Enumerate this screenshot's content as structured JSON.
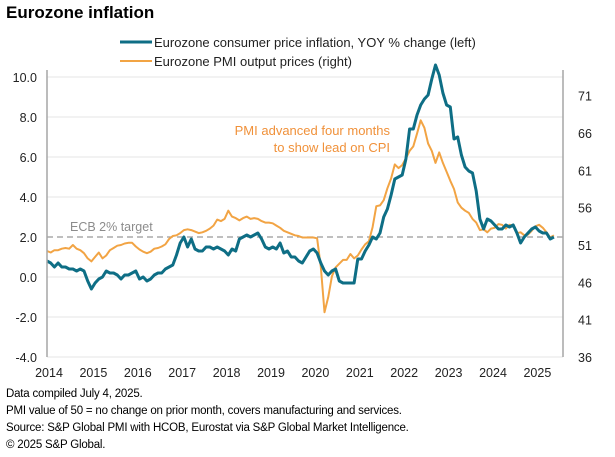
{
  "chart_data": {
    "type": "line",
    "title": "Eurozone inflation",
    "xlabel": "",
    "ylabel_left": "",
    "ylabel_right": "",
    "x_start": "2014-01",
    "x_ticks": [
      "2014",
      "2015",
      "2016",
      "2017",
      "2018",
      "2019",
      "2020",
      "2021",
      "2022",
      "2023",
      "2024",
      "2025"
    ],
    "ylim_left": [
      -4.0,
      10.0
    ],
    "yticks_left": [
      "10.0",
      "8.0",
      "6.0",
      "4.0",
      "2.0",
      "0.0",
      "-2.0",
      "-4.0"
    ],
    "ylim_right": [
      36,
      73.5
    ],
    "yticks_right": [
      "71",
      "66",
      "61",
      "56",
      "51",
      "46",
      "41",
      "36"
    ],
    "grid": true,
    "legend_position": "top-center",
    "reference_line": {
      "label": "ECB 2% target",
      "value": 2.0,
      "axis": "left"
    },
    "annotation": {
      "lines": [
        "PMI advanced four months",
        "to show lead on CPI"
      ]
    },
    "series": [
      {
        "name": "Eurozone consumer price inflation, YOY % change (left)",
        "axis": "left",
        "color": "#0e6e85",
        "values": [
          0.8,
          0.7,
          0.5,
          0.7,
          0.5,
          0.5,
          0.4,
          0.4,
          0.3,
          0.4,
          0.3,
          -0.2,
          -0.6,
          -0.3,
          -0.1,
          0.0,
          0.3,
          0.2,
          0.2,
          0.1,
          -0.1,
          0.1,
          0.1,
          0.2,
          0.3,
          -0.1,
          0.0,
          -0.2,
          -0.1,
          0.1,
          0.2,
          0.2,
          0.4,
          0.5,
          0.6,
          1.1,
          1.7,
          2.0,
          1.5,
          1.9,
          1.4,
          1.3,
          1.3,
          1.5,
          1.5,
          1.4,
          1.5,
          1.4,
          1.3,
          1.1,
          1.4,
          1.3,
          1.9,
          2.0,
          2.1,
          2.0,
          2.1,
          2.2,
          1.9,
          1.5,
          1.4,
          1.5,
          1.4,
          1.7,
          1.2,
          1.3,
          1.0,
          1.0,
          0.8,
          0.7,
          1.0,
          1.3,
          1.4,
          1.2,
          0.7,
          0.3,
          0.1,
          0.3,
          0.4,
          -0.2,
          -0.3,
          -0.3,
          -0.3,
          -0.3,
          0.9,
          0.9,
          1.3,
          1.6,
          2.0,
          1.9,
          2.2,
          3.0,
          3.4,
          4.1,
          4.9,
          5.0,
          5.1,
          5.9,
          7.4,
          7.4,
          8.1,
          8.6,
          8.9,
          9.1,
          9.9,
          10.6,
          10.1,
          9.2,
          8.6,
          8.5,
          6.9,
          7.0,
          6.1,
          5.5,
          5.3,
          5.2,
          4.3,
          2.9,
          2.4,
          2.9,
          2.8,
          2.6,
          2.4,
          2.4,
          2.6,
          2.5,
          2.6,
          2.2,
          1.7,
          2.0,
          2.2,
          2.4,
          2.5,
          2.3,
          2.2,
          2.2,
          1.9,
          2.0
        ]
      },
      {
        "name": "Eurozone PMI output prices (right)",
        "axis": "right",
        "color": "#f2a444",
        "values": [
          50.2,
          50.0,
          50.3,
          50.3,
          50.5,
          50.6,
          50.5,
          51.0,
          50.5,
          50.3,
          49.9,
          49.2,
          48.8,
          49.4,
          50.0,
          49.2,
          49.6,
          50.3,
          50.6,
          50.9,
          51.0,
          51.2,
          51.3,
          51.3,
          50.8,
          50.4,
          50.1,
          49.9,
          50.1,
          50.5,
          50.6,
          50.8,
          51.1,
          51.8,
          52.2,
          52.3,
          52.6,
          53.0,
          53.1,
          53.0,
          52.8,
          52.6,
          52.7,
          52.9,
          53.2,
          53.6,
          54.4,
          54.2,
          54.5,
          55.6,
          54.8,
          54.6,
          54.3,
          54.6,
          54.8,
          54.5,
          54.6,
          54.5,
          54.2,
          54.0,
          54.0,
          53.9,
          53.6,
          53.3,
          52.9,
          52.7,
          52.5,
          52.3,
          52.2,
          52.0,
          52.0,
          52.0,
          52.0,
          51.9,
          48.1,
          42.0,
          44.0,
          46.8,
          48.0,
          48.5,
          49.0,
          49.0,
          49.8,
          49.2,
          49.6,
          50.4,
          51.1,
          51.5,
          53.4,
          56.2,
          56.3,
          57.0,
          58.6,
          59.9,
          61.8,
          61.3,
          61.7,
          62.6,
          63.6,
          64.2,
          65.9,
          67.7,
          66.7,
          64.6,
          63.6,
          62.0,
          63.4,
          62.0,
          60.8,
          59.6,
          58.5,
          56.7,
          56.0,
          55.6,
          55.3,
          54.5,
          54.0,
          53.0,
          53.1,
          52.7,
          53.2,
          53.3,
          53.8,
          53.7,
          53.2,
          53.7,
          53.6,
          52.6,
          52.7,
          52.3,
          52.4,
          52.9,
          53.5,
          53.7,
          53.3,
          52.7,
          52.0,
          52.3
        ]
      }
    ]
  },
  "footnotes": [
    "Data compiled July 4, 2025.",
    "PMI value of 50 = no change on prior month, covers manufacturing and services.",
    "Source: S&P Global PMI with HCOB, Eurostat via S&P Global Market Intelligence.",
    "© 2025 S&P Global."
  ]
}
